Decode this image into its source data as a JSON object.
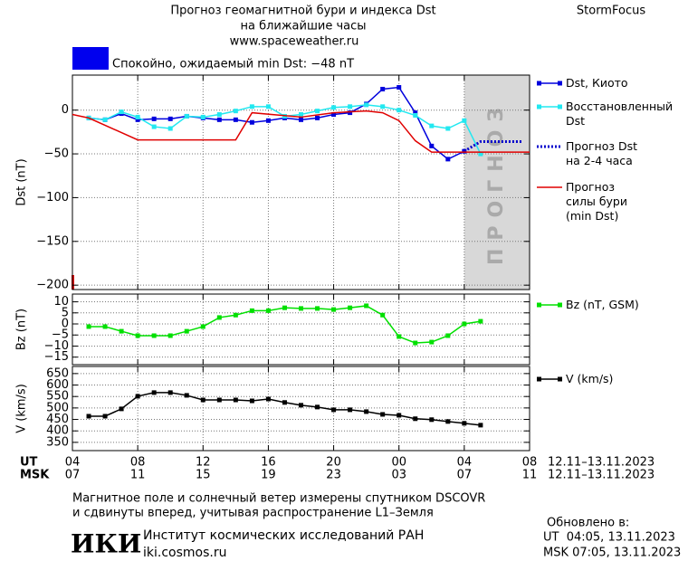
{
  "header": {
    "title": "Прогноз геомагнитной бури и индекса Dst",
    "subtitle": "на ближайшие часы",
    "url": "www.spaceweather.ru",
    "brand": "StormFocus"
  },
  "status": {
    "text": "Спокойно, ожидаемый min Dst: −48 nT",
    "color": "#0000ee"
  },
  "x_axis": {
    "xlim": [
      0,
      28
    ],
    "xticks": [
      {
        "value": 0,
        "label": "04"
      },
      {
        "value": 4,
        "label": "08"
      },
      {
        "value": 8,
        "label": "12"
      },
      {
        "value": 12,
        "label": "16"
      },
      {
        "value": 16,
        "label": "20"
      },
      {
        "value": 20,
        "label": "00"
      },
      {
        "value": 24,
        "label": "04"
      },
      {
        "value": 28,
        "label": "08"
      }
    ],
    "msk_labels": [
      "07",
      "11",
      "15",
      "19",
      "23",
      "03",
      "07",
      "11"
    ],
    "ut_label": "UT",
    "msk_label": "MSK",
    "ut_dates": "12.11–13.11.2023",
    "msk_dates": "12.11–13.11.2023"
  },
  "chart_data": [
    {
      "type": "line",
      "ylabel": "Dst (nT)",
      "ylim": [
        -205,
        40
      ],
      "yticks": [
        0,
        {
          "value": -50,
          "label": "−50"
        },
        {
          "value": -100,
          "label": "−100"
        },
        {
          "value": -150,
          "label": "−150"
        },
        {
          "value": -200,
          "label": "−200"
        }
      ],
      "grid": true,
      "forecast_region": {
        "xlim": [
          24,
          28
        ],
        "label": "ПРОГНОЗ",
        "color": "#d8d8d8"
      },
      "series": [
        {
          "name": "Dst, Киото",
          "color": "#0000dd",
          "style": "markers",
          "x": [
            1,
            2,
            3,
            4,
            5,
            6,
            7,
            8,
            9,
            10,
            11,
            12,
            13,
            14,
            15,
            16,
            17,
            18,
            19,
            20,
            21,
            22,
            23,
            24
          ],
          "values": [
            -9,
            -11,
            -4,
            -11,
            -10,
            -10,
            -7,
            -9,
            -11,
            -11,
            -14,
            -12,
            -9,
            -11,
            -9,
            -5,
            -3,
            7,
            24,
            26,
            -3,
            -41,
            -56,
            -47
          ]
        },
        {
          "name": "Восстановленный\nDst",
          "color": "#22e8f0",
          "style": "markers",
          "x": [
            1,
            2,
            3,
            4,
            5,
            6,
            7,
            8,
            9,
            10,
            11,
            12,
            13,
            14,
            15,
            16,
            17,
            18,
            19,
            20,
            21,
            22,
            23,
            24,
            25
          ],
          "values": [
            -9,
            -11,
            -2,
            -8,
            -19,
            -21,
            -7,
            -8,
            -5,
            -1,
            4,
            4,
            -7,
            -5,
            -1,
            3,
            4,
            6,
            4,
            0,
            -6,
            -18,
            -21,
            -12,
            -50
          ]
        },
        {
          "name": "Прогноз Dst\nна 2-4 часа",
          "color": "#0000cc",
          "style": "dotted",
          "x": [
            24,
            25,
            27.5
          ],
          "values": [
            -47,
            -36,
            -36
          ]
        },
        {
          "name": "Прогноз\nсилы бури\n(min Dst)",
          "color": "#e00000",
          "style": "line",
          "x": [
            0,
            1,
            4,
            10,
            11,
            14,
            16,
            18,
            19,
            20,
            21,
            22,
            28
          ],
          "values": [
            -5,
            -9,
            -34,
            -34,
            -3,
            -8,
            -3,
            -1,
            -3,
            -12,
            -35,
            -48,
            -48
          ]
        }
      ]
    },
    {
      "type": "line",
      "ylabel": "Bz (nT)",
      "ylim": [
        -18.4,
        13.5
      ],
      "yticks": [
        10,
        5,
        0,
        {
          "value": -5,
          "label": "−5"
        },
        {
          "value": -10,
          "label": "−10"
        },
        {
          "value": -15,
          "label": "−15"
        }
      ],
      "grid": true,
      "series": [
        {
          "name": "Bz (nT, GSM)",
          "color": "#00e000",
          "style": "markers",
          "x": [
            1,
            2,
            3,
            4,
            5,
            6,
            7,
            8,
            9,
            10,
            11,
            12,
            13,
            14,
            15,
            16,
            17,
            18,
            19,
            20,
            21,
            22,
            23,
            24,
            25
          ],
          "values": [
            -1.2,
            -1.2,
            -3.3,
            -5.3,
            -5.3,
            -5.3,
            -3.3,
            -1.2,
            2.9,
            4,
            6,
            6,
            7.3,
            7,
            7,
            6.5,
            7.3,
            8.2,
            4,
            -5.7,
            -8.6,
            -8.2,
            -5.3,
            0,
            1.2
          ]
        }
      ]
    },
    {
      "type": "line",
      "ylabel": "V (km/s)",
      "ylim": [
        314,
        681
      ],
      "yticks": [
        650,
        600,
        550,
        500,
        450,
        400,
        350
      ],
      "grid": true,
      "series": [
        {
          "name": "V (km/s)",
          "color": "#000000",
          "style": "markers",
          "x": [
            1,
            2,
            3,
            4,
            5,
            6,
            7,
            8,
            9,
            10,
            11,
            12,
            13,
            14,
            15,
            16,
            17,
            18,
            19,
            20,
            21,
            22,
            23,
            24,
            25
          ],
          "values": [
            464,
            464,
            496,
            551,
            567,
            567,
            555,
            535,
            535,
            535,
            531,
            539,
            524,
            512,
            504,
            492,
            492,
            484,
            472,
            468,
            453,
            449,
            441,
            433,
            425
          ]
        }
      ]
    }
  ],
  "footer": {
    "line1": "Магнитное поле и солнечный ветер измерены спутником DSCOVR",
    "line2": "и сдвинуты вперед, учитывая распространение L1–Земля",
    "updated": "Обновлено в:",
    "updated_ut": "UT  04:05, 13.11.2023",
    "updated_msk": "MSK 07:05, 13.11.2023",
    "logo": "ИКИ",
    "institute": "Институт космических исследований РАН",
    "site": "iki.cosmos.ru"
  }
}
